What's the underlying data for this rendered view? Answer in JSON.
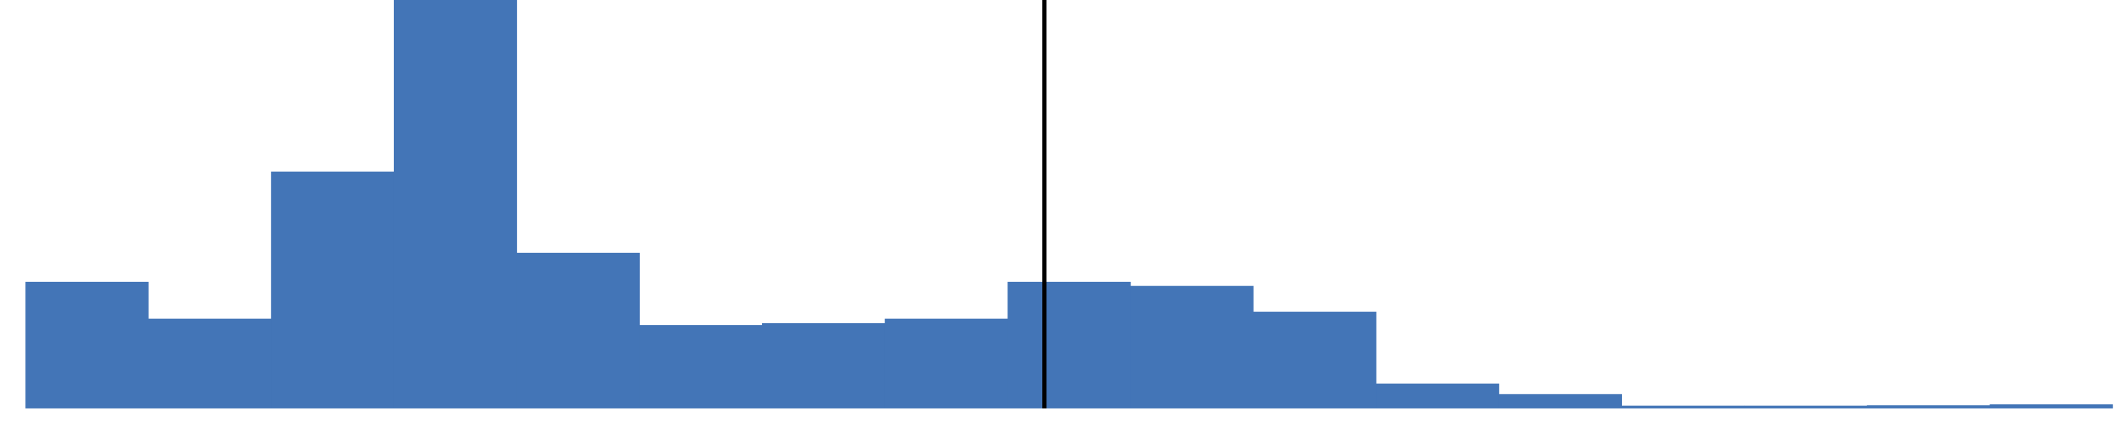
{
  "chart_data": {
    "type": "bar",
    "chart_type_detail": "histogram",
    "title": "",
    "xlabel": "",
    "ylabel": "",
    "bin_count": 17,
    "values": [
      0.31,
      0.22,
      0.58,
      1.0,
      0.381,
      0.204,
      0.209,
      0.22,
      0.31,
      0.3,
      0.237,
      0.061,
      0.035,
      0.007,
      0.007,
      0.008,
      0.01
    ],
    "ylim": [
      0,
      1.0
    ],
    "marker_position_bins": 8.3,
    "grid": false,
    "legend": "none",
    "colors": {
      "bar": "#4375B7",
      "marker_line": "#000000",
      "background": "#ffffff"
    }
  }
}
